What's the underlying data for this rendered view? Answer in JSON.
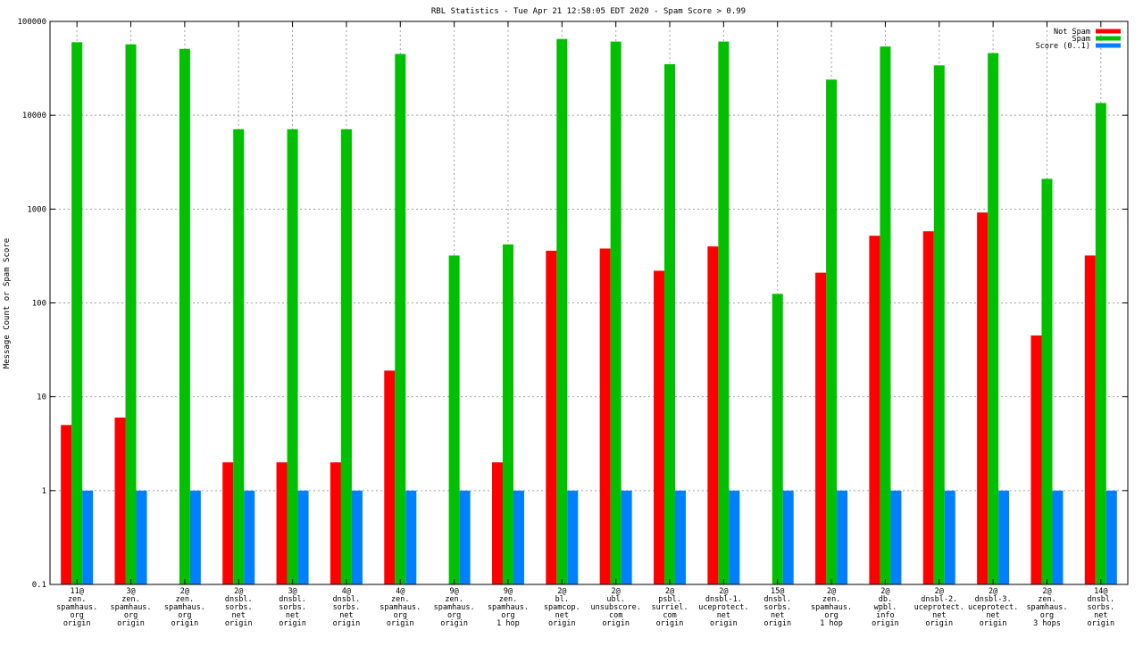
{
  "chart_data": {
    "type": "bar",
    "title": "RBL Statistics - Tue Apr 21 12:58:05 EDT 2020 - Spam Score > 0.99",
    "ylabel": "Message Count or Spam Score",
    "xlabel": "",
    "yscale": "log",
    "ylim": [
      0.1,
      100000
    ],
    "y_ticks": [
      "0.1",
      "1",
      "10",
      "100",
      "1000",
      "10000",
      "100000"
    ],
    "grid": true,
    "legend_position": "top-right",
    "categories": [
      [
        "11@",
        "zen.",
        "spamhaus.",
        "org",
        "origin"
      ],
      [
        "3@",
        "zen.",
        "spamhaus.",
        "org",
        "origin"
      ],
      [
        "2@",
        "zen.",
        "spamhaus.",
        "org",
        "origin"
      ],
      [
        "2@",
        "dnsbl.",
        "sorbs.",
        "net",
        "origin"
      ],
      [
        "3@",
        "dnsbl.",
        "sorbs.",
        "net",
        "origin"
      ],
      [
        "4@",
        "dnsbl.",
        "sorbs.",
        "net",
        "origin"
      ],
      [
        "4@",
        "zen.",
        "spamhaus.",
        "org",
        "origin"
      ],
      [
        "9@",
        "zen.",
        "spamhaus.",
        "org",
        "origin"
      ],
      [
        "9@",
        "zen.",
        "spamhaus.",
        "org",
        "1 hop"
      ],
      [
        "2@",
        "bl.",
        "spamcop.",
        "net",
        "origin"
      ],
      [
        "2@",
        "ubl.",
        "unsubscore.",
        "com",
        "origin"
      ],
      [
        "2@",
        "psbl.",
        "surriel.",
        "com",
        "origin"
      ],
      [
        "2@",
        "dnsbl-1.",
        "uceprotect.",
        "net",
        "origin"
      ],
      [
        "15@",
        "dnsbl.",
        "sorbs.",
        "net",
        "origin"
      ],
      [
        "2@",
        "zen.",
        "spamhaus.",
        "org",
        "1 hop"
      ],
      [
        "2@",
        "db.",
        "wpbl.",
        "info",
        "origin"
      ],
      [
        "2@",
        "dnsbl-2.",
        "uceprotect.",
        "net",
        "origin"
      ],
      [
        "2@",
        "dnsbl-3.",
        "uceprotect.",
        "net",
        "origin"
      ],
      [
        "2@",
        "zen.",
        "spamhaus.",
        "org",
        "3 hops"
      ],
      [
        "14@",
        "dnsbl.",
        "sorbs.",
        "net",
        "origin"
      ]
    ],
    "series": [
      {
        "name": "Not Spam",
        "color": "#ff0000",
        "values": [
          5,
          6,
          null,
          2,
          2,
          2,
          19,
          null,
          2,
          360,
          380,
          220,
          400,
          null,
          210,
          520,
          580,
          920,
          45,
          320
        ]
      },
      {
        "name": "Spam",
        "color": "#00c000",
        "values": [
          60000,
          57000,
          51000,
          7100,
          7100,
          7100,
          45000,
          320,
          420,
          65000,
          61000,
          35000,
          61000,
          125,
          24000,
          54000,
          34000,
          46000,
          2100,
          13500
        ]
      },
      {
        "name": "Score (0..1)",
        "color": "#0080ff",
        "values": [
          1,
          1,
          1,
          1,
          1,
          1,
          1,
          1,
          1,
          1,
          1,
          1,
          1,
          1,
          1,
          1,
          1,
          1,
          1,
          1
        ]
      }
    ]
  }
}
